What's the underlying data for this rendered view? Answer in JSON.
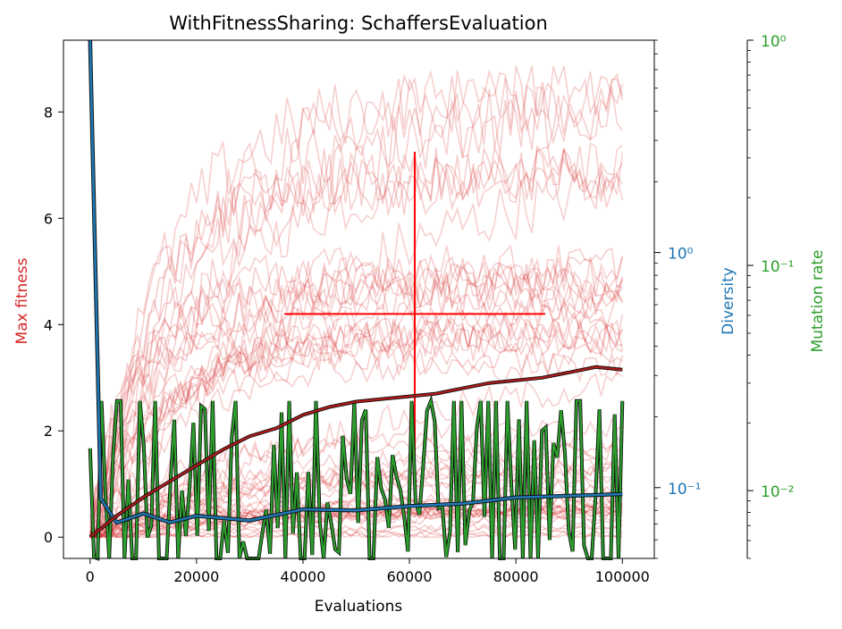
{
  "chart_data": {
    "type": "line",
    "title": "WithFitnessSharing: SchaffersEvaluation",
    "xlabel": "Evaluations",
    "ylabel_left": "Max fitness",
    "ylabel_right1": "Diversity",
    "ylabel_right2": "Mutation rate",
    "xlim": [
      -5000,
      106000
    ],
    "ylim_left": [
      -0.4,
      9.35
    ],
    "ylim_diversity_log": [
      0.05,
      8.0
    ],
    "ylim_mutation_log": [
      0.005,
      1.0
    ],
    "x_ticks": [
      0,
      20000,
      40000,
      60000,
      80000,
      100000
    ],
    "x_tick_labels": [
      "0",
      "20000",
      "40000",
      "60000",
      "80000",
      "100000"
    ],
    "left_ticks": [
      0,
      2,
      4,
      6,
      8
    ],
    "left_tick_labels": [
      "0",
      "2",
      "4",
      "6",
      "8"
    ],
    "diversity_major_ticks": [
      0.1,
      1
    ],
    "diversity_tick_labels": [
      "10⁻¹",
      "10⁰"
    ],
    "mutation_major_ticks": [
      0.01,
      0.1,
      1
    ],
    "mutation_tick_labels": [
      "10⁻²",
      "10⁻¹",
      "10⁰"
    ],
    "colors": {
      "fitness": "#d62728",
      "fitness_mean": "#b01b1b",
      "diversity": "#1f77b4",
      "mutation": "#2ca02c",
      "errorbar": "#ff0000"
    },
    "mean_fitness": {
      "x": [
        0,
        5000,
        10000,
        15000,
        20000,
        25000,
        30000,
        35000,
        40000,
        45000,
        50000,
        55000,
        60000,
        65000,
        70000,
        75000,
        80000,
        85000,
        90000,
        95000,
        100000
      ],
      "y": [
        0.0,
        0.4,
        0.75,
        1.05,
        1.35,
        1.65,
        1.9,
        2.05,
        2.3,
        2.45,
        2.55,
        2.6,
        2.65,
        2.7,
        2.8,
        2.9,
        2.95,
        3.0,
        3.1,
        3.2,
        3.15
      ]
    },
    "mean_diversity": {
      "x": [
        0,
        2000,
        5000,
        10000,
        15000,
        20000,
        30000,
        40000,
        50000,
        60000,
        70000,
        80000,
        90000,
        100000
      ],
      "y": [
        8.0,
        0.09,
        0.07,
        0.075,
        0.07,
        0.075,
        0.07,
        0.078,
        0.08,
        0.082,
        0.085,
        0.09,
        0.093,
        0.095
      ]
    },
    "individual_runs": {
      "count": 60,
      "x_range": [
        0,
        100000
      ],
      "final_range": [
        0.0,
        8.9
      ]
    },
    "mutation_rate": {
      "x_range": [
        0,
        100000
      ],
      "median": 0.01,
      "range": [
        0.005,
        0.025
      ]
    },
    "errorbar": {
      "x": 61000,
      "y": 4.2,
      "xerr": 24500,
      "yerr": 3.05
    }
  }
}
